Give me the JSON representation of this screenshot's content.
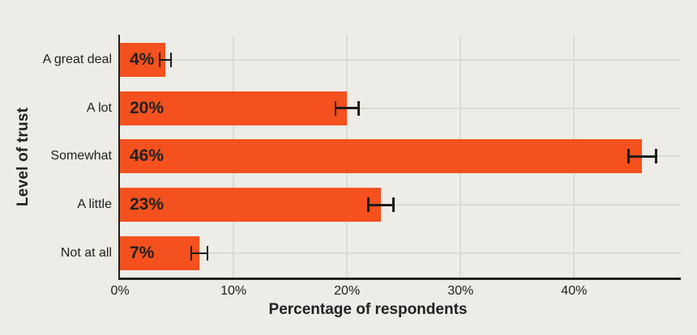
{
  "chart_data": {
    "type": "bar",
    "orientation": "horizontal",
    "title": "",
    "categories": [
      "A great deal",
      "A lot",
      "Somewhat",
      "A little",
      "Not at all"
    ],
    "values": [
      4,
      20,
      46,
      23,
      7
    ],
    "bar_labels": [
      "4%",
      "20%",
      "46%",
      "23%",
      "7%"
    ],
    "error_bars": {
      "type": "symmetric",
      "values": [
        0.6,
        1.1,
        1.3,
        1.2,
        0.8
      ]
    },
    "xlabel": "Percentage of respondents",
    "ylabel": "Level of trust",
    "x_ticks": [
      {
        "value": 0,
        "label": "0%"
      },
      {
        "value": 10,
        "label": "10%"
      },
      {
        "value": 20,
        "label": "20%"
      },
      {
        "value": 30,
        "label": "30%"
      },
      {
        "value": 40,
        "label": "40%"
      }
    ],
    "xlim": [
      0,
      49.4
    ],
    "grid": true,
    "legend": null
  },
  "style": {
    "background_color": "#EDECE7",
    "bar_color": "#F4511E",
    "grid_color": "#DBDAD5",
    "axis_color": "#212121",
    "text_color": "#212121",
    "error_bar_color": "#1C1C1C"
  }
}
